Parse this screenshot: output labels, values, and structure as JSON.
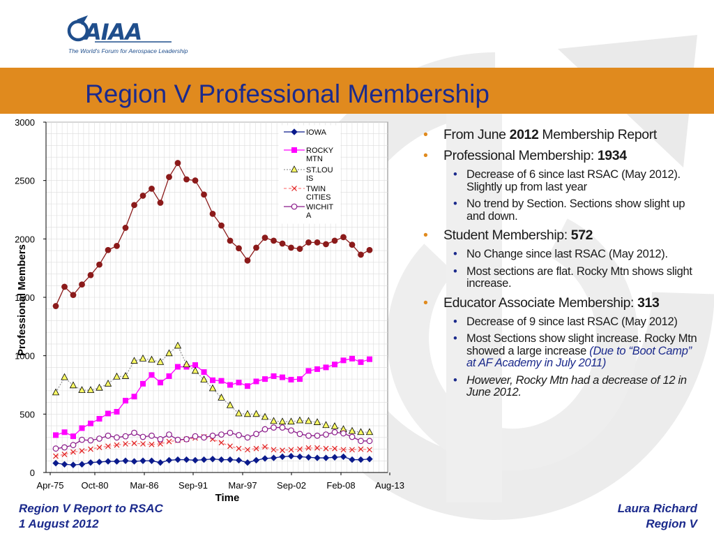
{
  "header": {
    "logo_text": "AIAA",
    "logo_tagline": "The World's Forum for Aerospace Leadership",
    "title": "Region V Professional Membership"
  },
  "chart_data": {
    "type": "line",
    "title": "",
    "xlabel": "Time",
    "ylabel": "Professional Members",
    "ylim": [
      0,
      3000
    ],
    "yticks": [
      0,
      500,
      1000,
      1500,
      2000,
      2500,
      3000
    ],
    "xtick_labels": [
      "Apr-75",
      "Oct-80",
      "Mar-86",
      "Sep-91",
      "Mar-97",
      "Sep-02",
      "Feb-08",
      "Aug-13"
    ],
    "grid": true,
    "legend_position": "top-right",
    "series": [
      {
        "name": "IOWA",
        "marker": "diamond",
        "color": "#0a1a8c",
        "values": [
          80,
          70,
          65,
          70,
          85,
          90,
          95,
          95,
          100,
          95,
          100,
          100,
          85,
          105,
          110,
          110,
          105,
          110,
          115,
          110,
          110,
          105,
          85,
          105,
          120,
          125,
          135,
          140,
          135,
          130,
          125,
          125,
          130,
          135,
          110,
          110,
          115
        ]
      },
      {
        "name": "ROCKY MTN",
        "marker": "square",
        "color": "#ff00ff",
        "values": [
          320,
          345,
          310,
          380,
          420,
          460,
          505,
          520,
          615,
          650,
          760,
          835,
          770,
          825,
          905,
          905,
          920,
          860,
          790,
          785,
          750,
          770,
          740,
          780,
          800,
          825,
          815,
          795,
          800,
          870,
          885,
          900,
          925,
          960,
          975,
          945,
          970
        ]
      },
      {
        "name": "ST.LOUIS",
        "marker": "triangle",
        "color": "#c8c800",
        "values": [
          685,
          815,
          745,
          705,
          705,
          725,
          760,
          820,
          825,
          955,
          975,
          965,
          945,
          1020,
          1085,
          925,
          870,
          795,
          720,
          640,
          575,
          505,
          500,
          500,
          475,
          440,
          435,
          435,
          445,
          440,
          430,
          405,
          395,
          370,
          355,
          345,
          345
        ]
      },
      {
        "name": "TWIN CITIES",
        "marker": "x",
        "color": "#e02020",
        "values": [
          140,
          155,
          175,
          185,
          200,
          215,
          225,
          235,
          245,
          250,
          245,
          240,
          245,
          265,
          275,
          285,
          295,
          305,
          285,
          255,
          225,
          205,
          195,
          205,
          220,
          195,
          190,
          195,
          200,
          210,
          210,
          205,
          205,
          195,
          195,
          200,
          195
        ]
      },
      {
        "name": "WICHITA",
        "marker": "circle",
        "color": "#8a1a8a",
        "values": [
          205,
          215,
          235,
          280,
          275,
          290,
          315,
          300,
          310,
          340,
          305,
          315,
          285,
          325,
          280,
          285,
          310,
          300,
          315,
          325,
          340,
          320,
          300,
          330,
          370,
          385,
          385,
          360,
          330,
          315,
          315,
          325,
          345,
          335,
          305,
          270,
          270
        ]
      },
      {
        "name": "",
        "marker": "circle",
        "color": "#8b1a1a",
        "values": [
          1425,
          1590,
          1520,
          1610,
          1690,
          1780,
          1905,
          1940,
          2095,
          2290,
          2370,
          2430,
          2310,
          2530,
          2650,
          2510,
          2500,
          2380,
          2215,
          2115,
          1985,
          1920,
          1815,
          1925,
          2010,
          1985,
          1960,
          1925,
          1915,
          1970,
          1970,
          1955,
          1985,
          2015,
          1950,
          1865,
          1905
        ]
      }
    ]
  },
  "bullets": [
    {
      "level": 1,
      "parts": [
        {
          "t": "From June "
        },
        {
          "t": "2012",
          "b": true
        },
        {
          "t": " Membership Report"
        }
      ]
    },
    {
      "level": 1,
      "parts": [
        {
          "t": "Professional Membership: "
        },
        {
          "t": "1934",
          "b": true
        }
      ]
    },
    {
      "level": 2,
      "parts": [
        {
          "t": "Decrease of 6 since last RSAC (May 2012).  Slightly up from last year"
        }
      ]
    },
    {
      "level": 2,
      "parts": [
        {
          "t": "No trend by Section.  Sections show slight up and down."
        }
      ]
    },
    {
      "level": 1,
      "parts": [
        {
          "t": "Student Membership: "
        },
        {
          "t": "572",
          "b": true
        }
      ]
    },
    {
      "level": 2,
      "parts": [
        {
          "t": "No Change since last RSAC (May 2012)."
        }
      ]
    },
    {
      "level": 2,
      "parts": [
        {
          "t": "Most sections are flat.  Rocky Mtn shows slight increase."
        }
      ]
    },
    {
      "level": 1,
      "parts": [
        {
          "t": "Educator Associate Membership: "
        },
        {
          "t": "313",
          "b": true
        }
      ]
    },
    {
      "level": 2,
      "parts": [
        {
          "t": "Decrease of 9 since last RSAC (May 2012)"
        }
      ]
    },
    {
      "level": 2,
      "parts": [
        {
          "t": "Most Sections show slight increase.  Rocky Mtn showed a large increase "
        },
        {
          "t": "(Due to “Boot Camp” at AF Academy in July 2011)",
          "style": "blue-ital"
        }
      ]
    },
    {
      "level": 2,
      "parts": [
        {
          "t": "However, Rocky Mtn had a decrease of 12 in June 2012.",
          "style": "ital"
        }
      ]
    }
  ],
  "footer": {
    "left_line1": "Region V Report to RSAC",
    "left_line2": "1 August 2012",
    "right_line1": "Laura Richard",
    "right_line2": "Region V"
  },
  "colors": {
    "band": "#e08a1e",
    "title": "#1b2a8c",
    "footer": "#1b2a8c"
  }
}
